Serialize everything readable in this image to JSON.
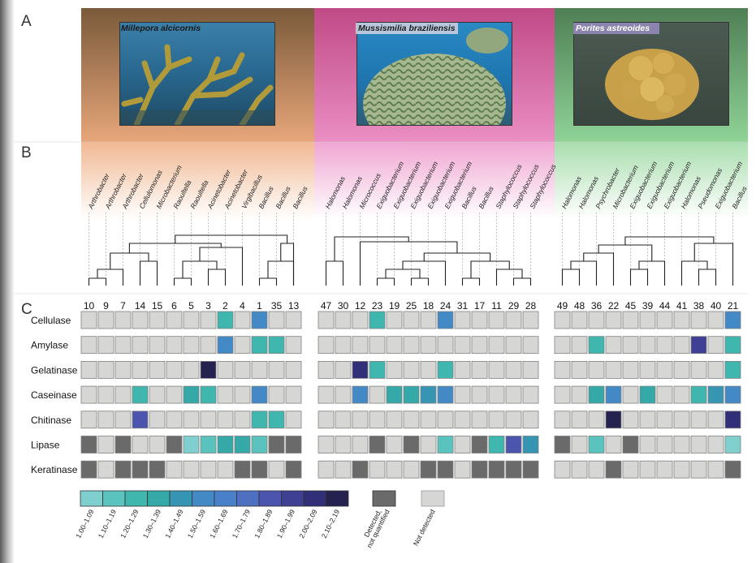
{
  "panels": {
    "a": "A",
    "b": "B",
    "c": "C"
  },
  "groups": [
    {
      "species": "Millepora alcicornis",
      "bacteria": [
        "Arthrobacter",
        "Arthrobacter",
        "Arthrobacter",
        "Cellulomonas",
        "Microbacterium",
        "Raoultella",
        "Raoultella",
        "Acinetobacter",
        "Acinetobacter",
        "Virgibacillus",
        "Bacillus",
        "Bacillus",
        "Bacillus"
      ],
      "isolates": [
        "10",
        "9",
        "7",
        "14",
        "15",
        "6",
        "5",
        "3",
        "2",
        "4",
        "1",
        "35",
        "13"
      ]
    },
    {
      "species": "Mussismilia braziliensis",
      "bacteria": [
        "Halomonas",
        "Halomonas",
        "Micrococcus",
        "Exiguobacterium",
        "Exiguobacterium",
        "Exiguobacterium",
        "Exiguobacterium",
        "Exiguobacterium",
        "Bacillus",
        "Bacillus",
        "Staphylococcus",
        "Staphylococcus",
        "Staphylococcus"
      ],
      "isolates": [
        "47",
        "30",
        "12",
        "23",
        "19",
        "25",
        "18",
        "24",
        "31",
        "17",
        "11",
        "29",
        "28"
      ]
    },
    {
      "species": "Porites astreoides",
      "bacteria": [
        "Halomonas",
        "Halomonas",
        "Psychrobacter",
        "Microbacterium",
        "Exiguobacterium",
        "Exiguobacterium",
        "Exiguobacterium",
        "Halomonas",
        "Pseudomonas",
        "Exiguobacterium",
        "Bacillus"
      ],
      "isolates": [
        "49",
        "48",
        "36",
        "22",
        "45",
        "39",
        "44",
        "41",
        "38",
        "40",
        "21"
      ]
    }
  ],
  "chart_data": {
    "type": "heatmap",
    "title": "",
    "rows": [
      "Cellulase",
      "Amylase",
      "Gelatinase",
      "Caseinase",
      "Chitinase",
      "Lipase",
      "Keratinase"
    ],
    "columns": [
      [
        "10",
        "9",
        "7",
        "14",
        "15",
        "6",
        "5",
        "3",
        "2",
        "4",
        "1",
        "35",
        "13"
      ],
      [
        "47",
        "30",
        "12",
        "23",
        "19",
        "25",
        "18",
        "24",
        "31",
        "17",
        "11",
        "29",
        "28"
      ],
      [
        "49",
        "48",
        "36",
        "22",
        "45",
        "39",
        "44",
        "41",
        "38",
        "40",
        "21"
      ]
    ],
    "legend_code": "0 = not detected, 1 = detected not quantified, 2..13 = enzymatic index bins 1.00-1.09 .. 2.10-2.19",
    "values": [
      [
        [
          0,
          0,
          0,
          0,
          0,
          0,
          0,
          0,
          4,
          0,
          7,
          0,
          0
        ],
        [
          0,
          0,
          0,
          0,
          0,
          0,
          0,
          0,
          7,
          0,
          4,
          4,
          0
        ],
        [
          0,
          0,
          0,
          0,
          0,
          0,
          0,
          13,
          0,
          0,
          0,
          0,
          0
        ],
        [
          0,
          0,
          0,
          4,
          0,
          0,
          5,
          4,
          0,
          0,
          7,
          0,
          0
        ],
        [
          0,
          0,
          0,
          10,
          0,
          0,
          0,
          0,
          0,
          0,
          4,
          4,
          0
        ],
        [
          1,
          0,
          1,
          0,
          0,
          1,
          2,
          3,
          5,
          5,
          3,
          1,
          1
        ],
        [
          1,
          0,
          1,
          1,
          1,
          0,
          0,
          0,
          0,
          1,
          1,
          0,
          1
        ]
      ],
      [
        [
          0,
          0,
          0,
          4,
          0,
          0,
          0,
          7,
          0,
          0,
          0,
          0,
          0
        ],
        [
          0,
          0,
          0,
          0,
          0,
          0,
          0,
          0,
          0,
          0,
          0,
          0,
          0
        ],
        [
          0,
          0,
          12,
          4,
          0,
          0,
          0,
          4,
          0,
          0,
          0,
          0,
          0
        ],
        [
          0,
          0,
          7,
          0,
          5,
          5,
          6,
          7,
          0,
          0,
          0,
          0,
          0
        ],
        [
          0,
          0,
          0,
          0,
          0,
          0,
          0,
          0,
          0,
          0,
          0,
          0,
          0
        ],
        [
          0,
          0,
          0,
          1,
          0,
          1,
          0,
          3,
          0,
          1,
          4,
          10,
          6
        ],
        [
          0,
          0,
          1,
          0,
          0,
          0,
          1,
          1,
          0,
          1,
          1,
          1,
          1
        ]
      ],
      [
        [
          0,
          0,
          0,
          0,
          0,
          0,
          0,
          0,
          0,
          0,
          7
        ],
        [
          0,
          0,
          4,
          0,
          0,
          0,
          0,
          0,
          11,
          0,
          4
        ],
        [
          0,
          0,
          0,
          0,
          0,
          0,
          0,
          0,
          0,
          0,
          4
        ],
        [
          0,
          0,
          5,
          7,
          0,
          5,
          0,
          0,
          4,
          6,
          7
        ],
        [
          0,
          0,
          0,
          13,
          0,
          0,
          0,
          0,
          0,
          0,
          12
        ],
        [
          1,
          0,
          3,
          0,
          1,
          0,
          0,
          0,
          0,
          0,
          2
        ],
        [
          0,
          0,
          0,
          1,
          0,
          0,
          0,
          0,
          0,
          0,
          1
        ]
      ]
    ],
    "legend": [
      {
        "label": "1.00–1.09",
        "color": "#7ecfce"
      },
      {
        "label": "1.10–1.19",
        "color": "#5bc3bd"
      },
      {
        "label": "1.20–1.29",
        "color": "#3fb6ae"
      },
      {
        "label": "1.30–1.39",
        "color": "#35a8a8"
      },
      {
        "label": "1.40–1.49",
        "color": "#3795b4"
      },
      {
        "label": "1.50–1.59",
        "color": "#4289c6"
      },
      {
        "label": "1.60–1.69",
        "color": "#4a7fca"
      },
      {
        "label": "1.70–1.79",
        "color": "#4f6fc0"
      },
      {
        "label": "1.80–1.89",
        "color": "#4b55ad"
      },
      {
        "label": "1.90–1.99",
        "color": "#3f3f93"
      },
      {
        "label": "2.00–2.09",
        "color": "#312f78"
      },
      {
        "label": "2.10–2.19",
        "color": "#25224f"
      }
    ],
    "legend_detected": {
      "label": "Detected,\nnot quantified",
      "color": "#6a6a6a"
    },
    "legend_not_detected": {
      "label": "Not detected",
      "color": "#d6d6d4"
    }
  },
  "colors": {
    "orange": "#e9a97c",
    "pink": "#e57fb6",
    "green": "#86c98d",
    "cell_border": "#808080"
  }
}
